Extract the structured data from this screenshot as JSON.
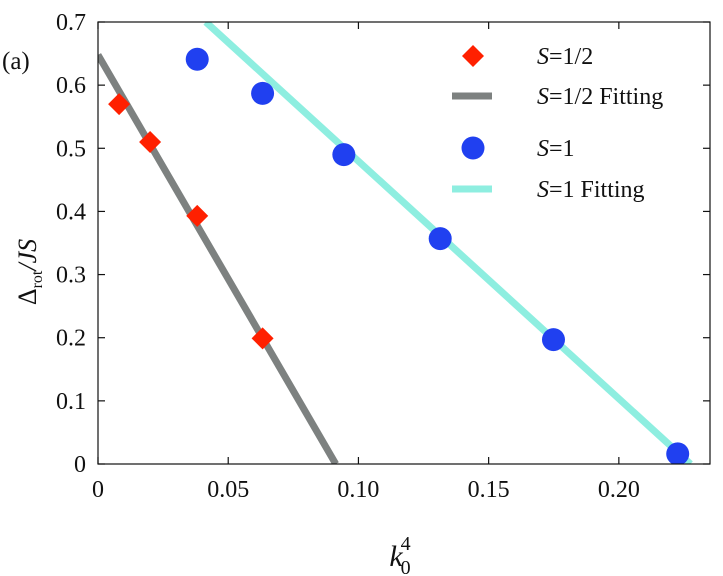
{
  "panel_label": "(a)",
  "chart_data": {
    "type": "scatter",
    "title": "",
    "xlabel": {
      "base": "k",
      "sub": "0",
      "sup": "4"
    },
    "ylabel": {
      "base": "Δ",
      "sub": "rot",
      "rest": "/JS"
    },
    "xlim": [
      0,
      0.235
    ],
    "ylim": [
      0,
      0.7
    ],
    "xticks": [
      0,
      0.05,
      0.1,
      0.15,
      0.2
    ],
    "xtick_labels": [
      "0",
      "0.05",
      "0.10",
      "0.15",
      "0.20"
    ],
    "yticks": [
      0,
      0.1,
      0.2,
      0.3,
      0.4,
      0.5,
      0.6,
      0.7
    ],
    "ytick_labels": [
      "0",
      "0.1",
      "0.2",
      "0.3",
      "0.4",
      "0.5",
      "0.6",
      "0.7"
    ],
    "grid": false,
    "legend_position": "top-right",
    "series": [
      {
        "name": "S=1/2",
        "legend_parts": [
          "S",
          "=1/2"
        ],
        "kind": "markers",
        "marker": "diamond",
        "color": "#ff2000",
        "points": [
          [
            0.0081,
            0.57
          ],
          [
            0.02,
            0.51
          ],
          [
            0.0381,
            0.393
          ],
          [
            0.0632,
            0.199
          ]
        ]
      },
      {
        "name": "S=1/2 Fitting",
        "legend_parts": [
          "S",
          "=1/2 Fitting"
        ],
        "kind": "line",
        "color": "#7d8180",
        "points": [
          [
            0.0,
            0.648
          ],
          [
            0.0913,
            0.0
          ]
        ]
      },
      {
        "name": "S=1",
        "legend_parts": [
          "S",
          "=1"
        ],
        "kind": "markers",
        "marker": "circle",
        "color": "#2040f0",
        "points": [
          [
            0.0381,
            0.641
          ],
          [
            0.0632,
            0.587
          ],
          [
            0.0944,
            0.49
          ],
          [
            0.1314,
            0.357
          ],
          [
            0.1749,
            0.197
          ],
          [
            0.2226,
            0.016
          ]
        ]
      },
      {
        "name": "S=1 Fitting",
        "legend_parts": [
          "S",
          "=1    Fitting"
        ],
        "kind": "line",
        "color": "#8eeee0",
        "points": [
          [
            0.0414,
            0.7
          ],
          [
            0.2275,
            0.0
          ]
        ]
      }
    ]
  }
}
